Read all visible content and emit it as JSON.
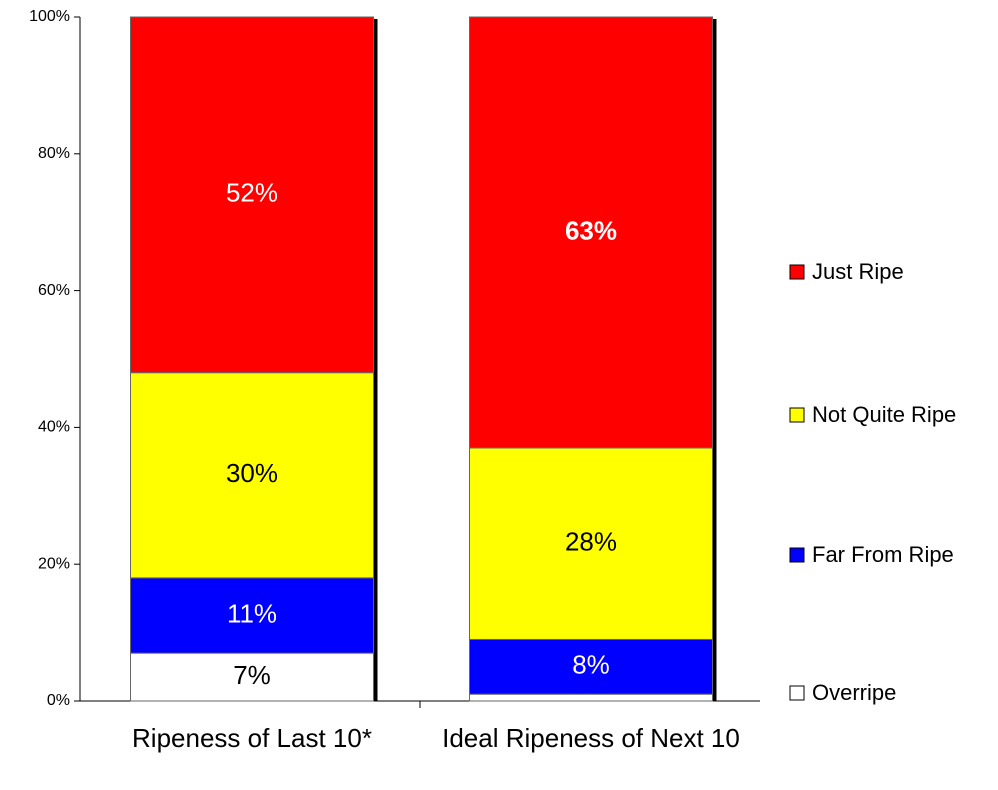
{
  "chart_data": {
    "type": "stacked_bar",
    "categories": [
      "Ripeness of Last 10*",
      "Ideal Ripeness of Next 10"
    ],
    "series": [
      {
        "name": "Overripe",
        "color": "#ffffff",
        "label_color": "#000000",
        "values": [
          7,
          1
        ],
        "value_labels": [
          "7%",
          null
        ]
      },
      {
        "name": "Far From Ripe",
        "color": "#0000ff",
        "label_color": "#ffffff",
        "values": [
          11,
          8
        ],
        "value_labels": [
          "11%",
          "8%"
        ]
      },
      {
        "name": "Not Quite Ripe",
        "color": "#ffff00",
        "label_color": "#000000",
        "values": [
          30,
          28
        ],
        "value_labels": [
          "30%",
          "28%"
        ]
      },
      {
        "name": "Just Ripe",
        "color": "#ff0000",
        "label_color": "#ffffff",
        "values": [
          52,
          63
        ],
        "value_labels": [
          "52%",
          "63%"
        ]
      }
    ],
    "ylim": [
      0,
      100
    ],
    "yticks": [
      {
        "value": 0,
        "label": "0%"
      },
      {
        "value": 20,
        "label": "20%"
      },
      {
        "value": 40,
        "label": "40%"
      },
      {
        "value": 60,
        "label": "60%"
      },
      {
        "value": 80,
        "label": "80%"
      },
      {
        "value": 100,
        "label": "100%"
      }
    ],
    "legend": "right"
  }
}
